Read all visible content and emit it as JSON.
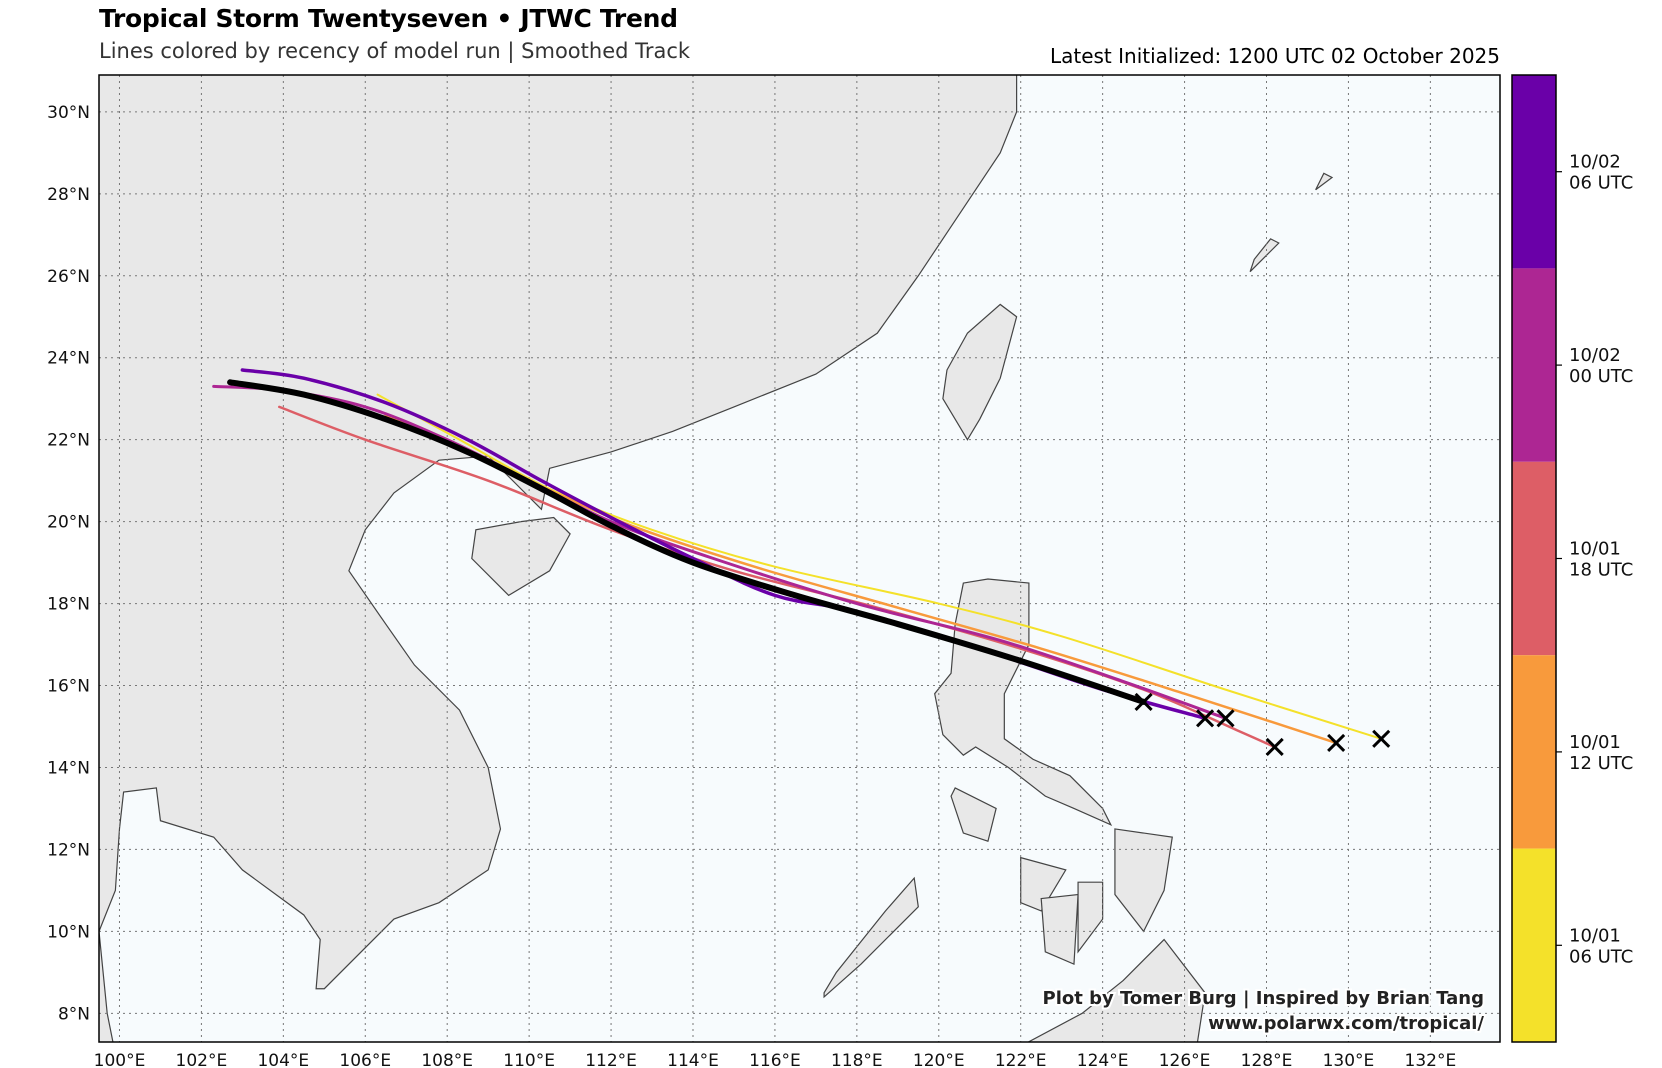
{
  "header": {
    "title": "Tropical Storm Twentyseven • JTWC Trend",
    "subtitle": "Lines colored by recency of model run | Smoothed Track",
    "latest": "Latest Initialized: 1200 UTC 02 October 2025"
  },
  "credits": {
    "line1": "Plot by Tomer Burg | Inspired by Brian Tang",
    "line2": "www.polarwx.com/tropical/"
  },
  "colors": {
    "ocean": "#f7fbfd",
    "land": "#e8e8e8",
    "coast": "#444444",
    "grid": "#777777"
  },
  "chart_data": {
    "type": "map-tracks",
    "lon_range": [
      99.5,
      133.7
    ],
    "lat_range": [
      7.3,
      30.9
    ],
    "lon_ticks": [
      "100°E",
      "102°E",
      "104°E",
      "106°E",
      "108°E",
      "110°E",
      "112°E",
      "114°E",
      "116°E",
      "118°E",
      "120°E",
      "122°E",
      "124°E",
      "126°E",
      "128°E",
      "130°E",
      "132°E"
    ],
    "lon_tick_values": [
      100,
      102,
      104,
      106,
      108,
      110,
      112,
      114,
      116,
      118,
      120,
      122,
      124,
      126,
      128,
      130,
      132
    ],
    "lat_ticks": [
      "8°N",
      "10°N",
      "12°N",
      "14°N",
      "16°N",
      "18°N",
      "20°N",
      "22°N",
      "24°N",
      "26°N",
      "28°N",
      "30°N"
    ],
    "lat_tick_values": [
      8,
      10,
      12,
      14,
      16,
      18,
      20,
      22,
      24,
      26,
      28,
      30
    ],
    "grid": true,
    "colorbar": [
      {
        "label1": "10/02",
        "label2": "06 UTC",
        "color": "#6a00a8"
      },
      {
        "label1": "10/02",
        "label2": "00 UTC",
        "color": "#ad2693"
      },
      {
        "label1": "10/01",
        "label2": "18 UTC",
        "color": "#dd5e66"
      },
      {
        "label1": "10/01",
        "label2": "12 UTC",
        "color": "#f89a3c"
      },
      {
        "label1": "10/01",
        "label2": "06 UTC",
        "color": "#f4e12a"
      }
    ],
    "tracks": [
      {
        "run": "10/01 06 UTC",
        "color": "#f4e12a",
        "width": 2,
        "points": [
          [
            130.8,
            14.7
          ],
          [
            127,
            15.9
          ],
          [
            123,
            17.2
          ],
          [
            120,
            18.0
          ],
          [
            116,
            18.9
          ],
          [
            113,
            19.8
          ],
          [
            110.5,
            20.8
          ],
          [
            108.3,
            22.0
          ],
          [
            106.3,
            23.1
          ]
        ]
      },
      {
        "run": "10/01 12 UTC",
        "color": "#f89a3c",
        "width": 2.5,
        "points": [
          [
            129.7,
            14.6
          ],
          [
            126,
            15.8
          ],
          [
            122.5,
            16.9
          ],
          [
            119,
            17.9
          ],
          [
            115.5,
            18.9
          ],
          [
            112.5,
            19.9
          ],
          [
            110.2,
            20.9
          ],
          [
            108,
            21.9
          ],
          [
            106.5,
            22.6
          ]
        ]
      },
      {
        "run": "10/01 18 UTC",
        "color": "#dd5e66",
        "width": 2.5,
        "points": [
          [
            128.2,
            14.5
          ],
          [
            127.3,
            14.9
          ],
          [
            125,
            15.9
          ],
          [
            122,
            16.9
          ],
          [
            118.5,
            17.9
          ],
          [
            115,
            18.8
          ],
          [
            112,
            19.8
          ],
          [
            109,
            21.0
          ],
          [
            106,
            22.0
          ],
          [
            103.9,
            22.8
          ]
        ]
      },
      {
        "run": "10/02 00 UTC",
        "color": "#ad2693",
        "width": 3,
        "points": [
          [
            127,
            15.2
          ],
          [
            124.5,
            16.1
          ],
          [
            121.5,
            17.1
          ],
          [
            118,
            18.0
          ],
          [
            114.5,
            19.1
          ],
          [
            112,
            20.0
          ],
          [
            110,
            21.0
          ],
          [
            108,
            22.0
          ],
          [
            106,
            22.8
          ],
          [
            104,
            23.2
          ],
          [
            102.3,
            23.3
          ]
        ]
      },
      {
        "run": "10/02 06 UTC",
        "color": "#6a00a8",
        "width": 3.5,
        "points": [
          [
            126.5,
            15.2
          ],
          [
            124,
            15.9
          ],
          [
            121,
            16.9
          ],
          [
            118,
            17.8
          ],
          [
            116,
            18.2
          ],
          [
            114,
            19.1
          ],
          [
            112,
            20.1
          ],
          [
            110.3,
            21.0
          ],
          [
            108.5,
            22.0
          ],
          [
            106.5,
            22.9
          ],
          [
            104.5,
            23.5
          ],
          [
            103,
            23.7
          ]
        ]
      },
      {
        "run": "10/02 12 UTC",
        "color": "#000000",
        "width": 6,
        "points": [
          [
            125,
            15.6
          ],
          [
            122,
            16.6
          ],
          [
            119,
            17.5
          ],
          [
            116.5,
            18.2
          ],
          [
            114,
            19.0
          ],
          [
            112,
            19.9
          ],
          [
            110.5,
            20.7
          ],
          [
            108.5,
            21.7
          ],
          [
            106.5,
            22.5
          ],
          [
            104.5,
            23.1
          ],
          [
            102.7,
            23.4
          ]
        ]
      }
    ]
  }
}
